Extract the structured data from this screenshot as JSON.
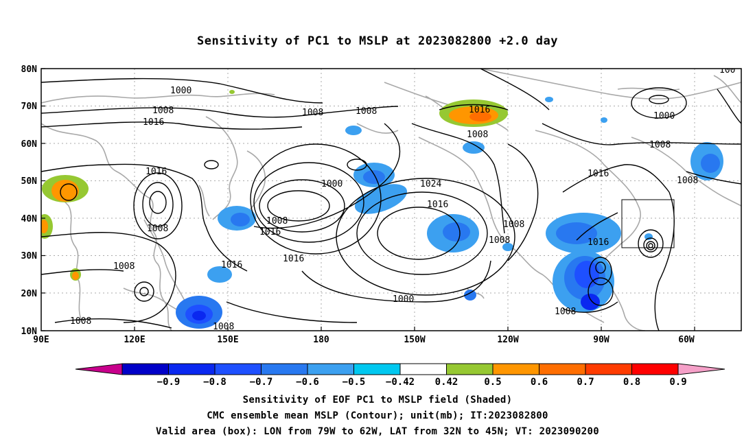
{
  "title": "Sensitivity of PC1 to MSLP at 2023082800 +2.0 day",
  "map": {
    "lat_labels": [
      "80N",
      "70N",
      "60N",
      "50N",
      "40N",
      "30N",
      "20N",
      "10N"
    ],
    "lon_labels": [
      "90E",
      "120E",
      "150E",
      "180",
      "150W",
      "120W",
      "90W",
      "60W"
    ],
    "box_region": "LON 79W to 62W, LAT 32N to 45N"
  },
  "contour_labels": [
    {
      "text": "1000"
    },
    {
      "text": "1008"
    },
    {
      "text": "1016"
    },
    {
      "text": "1008"
    },
    {
      "text": "1008"
    },
    {
      "text": "1016"
    },
    {
      "text": "1008"
    },
    {
      "text": "1016"
    },
    {
      "text": "1000"
    },
    {
      "text": "1008"
    },
    {
      "text": "1016"
    },
    {
      "text": "1024"
    },
    {
      "text": "1016"
    },
    {
      "text": "1016"
    },
    {
      "text": "1000"
    },
    {
      "text": "1008"
    },
    {
      "text": "1008"
    },
    {
      "text": "1008"
    },
    {
      "text": "1008"
    },
    {
      "text": "1016"
    },
    {
      "text": "1008"
    },
    {
      "text": "1016"
    },
    {
      "text": "1008"
    },
    {
      "text": "1008"
    },
    {
      "text": "1000"
    },
    {
      "text": "1008"
    },
    {
      "text": "100"
    }
  ],
  "colorbar": {
    "labels": [
      "−0.9",
      "−0.8",
      "−0.7",
      "−0.6",
      "−0.5",
      "−0.42",
      "0.42",
      "0.5",
      "0.6",
      "0.7",
      "0.8",
      "0.9"
    ],
    "colors": [
      "#c8008c",
      "#0000c8",
      "#0a28f0",
      "#1e50ff",
      "#2878f0",
      "#3ca0f0",
      "#00c8f0",
      "#ffffff",
      "#96c832",
      "#ff9600",
      "#ff6e00",
      "#ff3c00",
      "#ff0000",
      "#f5a0c8"
    ]
  },
  "captions": {
    "line1": "Sensitivity of EOF PC1 to MSLP field (Shaded)",
    "line2": "CMC ensemble mean MSLP (Contour); unit(mb); IT:2023082800",
    "line3": "Valid area (box): LON from 79W to 62W, LAT from 32N to 45N; VT: 2023090200"
  }
}
